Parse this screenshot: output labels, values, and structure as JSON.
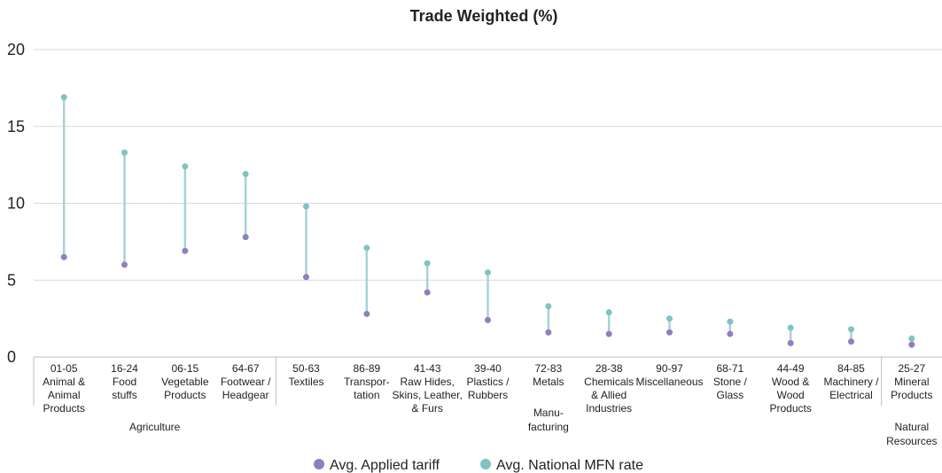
{
  "chart_data": {
    "type": "dumbbell",
    "title": "Trade Weighted (%)",
    "ylim": [
      0,
      20
    ],
    "yticks": [
      0,
      5,
      10,
      15,
      20
    ],
    "grid": true,
    "legend_position": "bottom",
    "colors": {
      "applied": "#8f7fc0",
      "mfn": "#7fc3c3",
      "connector": "#a8d2d4",
      "grid": "#d9d9d9",
      "separator": "#bdbdbd"
    },
    "categories": [
      [
        "01-05",
        "Animal &",
        "Animal",
        "Products"
      ],
      [
        "16-24",
        "Food",
        "stuffs"
      ],
      [
        "06-15",
        "Vegetable",
        "Products"
      ],
      [
        "64-67",
        "Footwear /",
        "Headgear"
      ],
      [
        "50-63",
        "Textiles"
      ],
      [
        "86-89",
        "Transpor-",
        "tation"
      ],
      [
        "41-43",
        "Raw Hides,",
        "Skins, Leather,",
        "& Furs"
      ],
      [
        "39-40",
        "Plastics /",
        "Rubbers"
      ],
      [
        "72-83",
        "Metals"
      ],
      [
        "28-38",
        "Chemicals",
        "& Allied",
        "Industries"
      ],
      [
        "90-97",
        "Miscellaneous"
      ],
      [
        "68-71",
        "Stone /",
        "Glass"
      ],
      [
        "44-49",
        "Wood &",
        "Wood",
        "Products"
      ],
      [
        "84-85",
        "Machinery /",
        "Electrical"
      ],
      [
        "25-27",
        "Mineral",
        "Products"
      ]
    ],
    "series": [
      {
        "name": "Avg. Applied tariff",
        "values": [
          6.5,
          6.0,
          6.9,
          7.8,
          5.2,
          2.8,
          4.2,
          2.4,
          1.6,
          1.5,
          1.6,
          1.5,
          0.9,
          1.0,
          0.8
        ]
      },
      {
        "name": "Avg. National MFN rate",
        "values": [
          16.9,
          13.3,
          12.4,
          11.9,
          9.8,
          7.1,
          6.1,
          5.5,
          3.3,
          2.9,
          2.5,
          2.3,
          1.9,
          1.8,
          1.2
        ]
      }
    ],
    "groups": [
      {
        "label": [
          "Agriculture"
        ],
        "from": 0,
        "to": 3
      },
      {
        "label": [
          "Manu-",
          "facturing"
        ],
        "from": 4,
        "to": 13
      },
      {
        "label": [
          "Natural",
          "Resources"
        ],
        "from": 14,
        "to": 14
      }
    ]
  }
}
